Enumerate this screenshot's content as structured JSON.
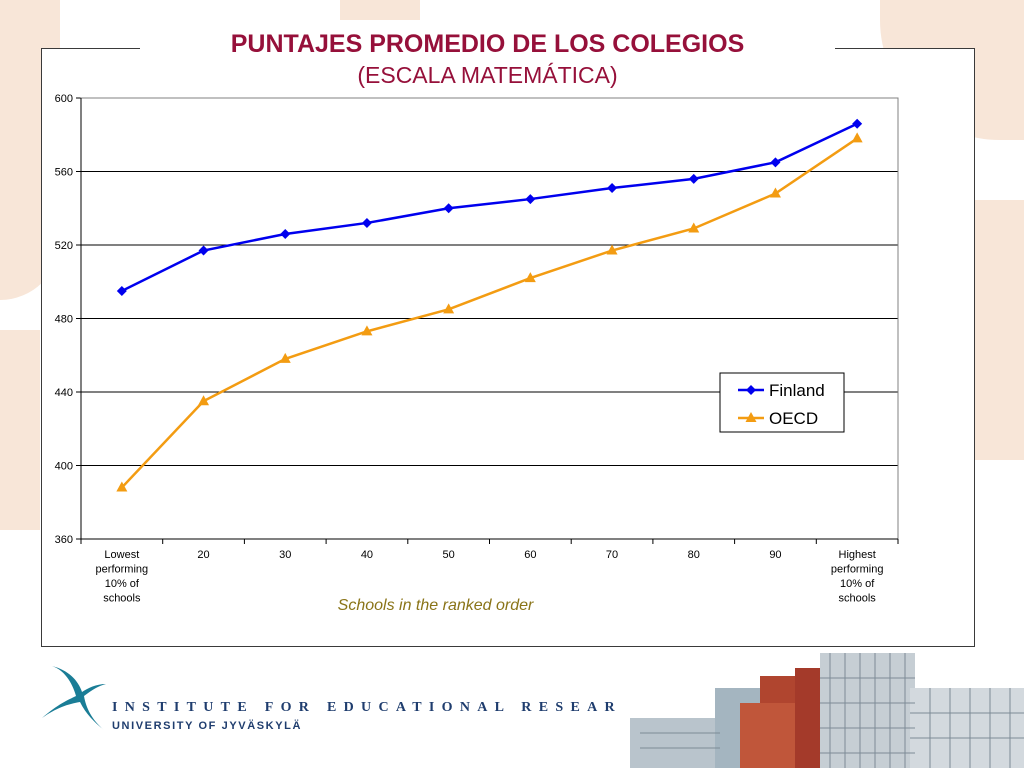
{
  "title": {
    "line1": "PUNTAJES PROMEDIO DE LOS COLEGIOS",
    "line2": "(ESCALA MATEMÁTICA)"
  },
  "chart_data": {
    "type": "line",
    "title": "PUNTAJES PROMEDIO DE LOS COLEGIOS (ESCALA MATEMÁTICA)",
    "xlabel": "Schools in the ranked order",
    "ylabel": "",
    "categories": [
      [
        "Lowest",
        "performing",
        "10% of",
        "schools"
      ],
      [
        "20"
      ],
      [
        "30"
      ],
      [
        "40"
      ],
      [
        "50"
      ],
      [
        "60"
      ],
      [
        "70"
      ],
      [
        "80"
      ],
      [
        "90"
      ],
      [
        "Highest",
        "performing",
        "10% of",
        "schools"
      ]
    ],
    "ylim": [
      360,
      600
    ],
    "yticks": [
      360,
      400,
      440,
      480,
      520,
      560,
      600
    ],
    "grid": true,
    "legend_position": "right",
    "series": [
      {
        "name": "Finland",
        "color": "#0000ee",
        "marker": "diamond",
        "values": [
          495,
          517,
          526,
          532,
          540,
          545,
          551,
          556,
          565,
          586
        ]
      },
      {
        "name": "OECD",
        "color": "#f39c12",
        "marker": "triangle",
        "values": [
          388,
          435,
          458,
          473,
          485,
          502,
          517,
          529,
          548,
          578
        ]
      }
    ]
  },
  "footer": {
    "institute": "INSTITUTE FOR EDUCATIONAL RESEARCH",
    "university": "UNIVERSITY OF JYVÄSKYLÄ"
  }
}
